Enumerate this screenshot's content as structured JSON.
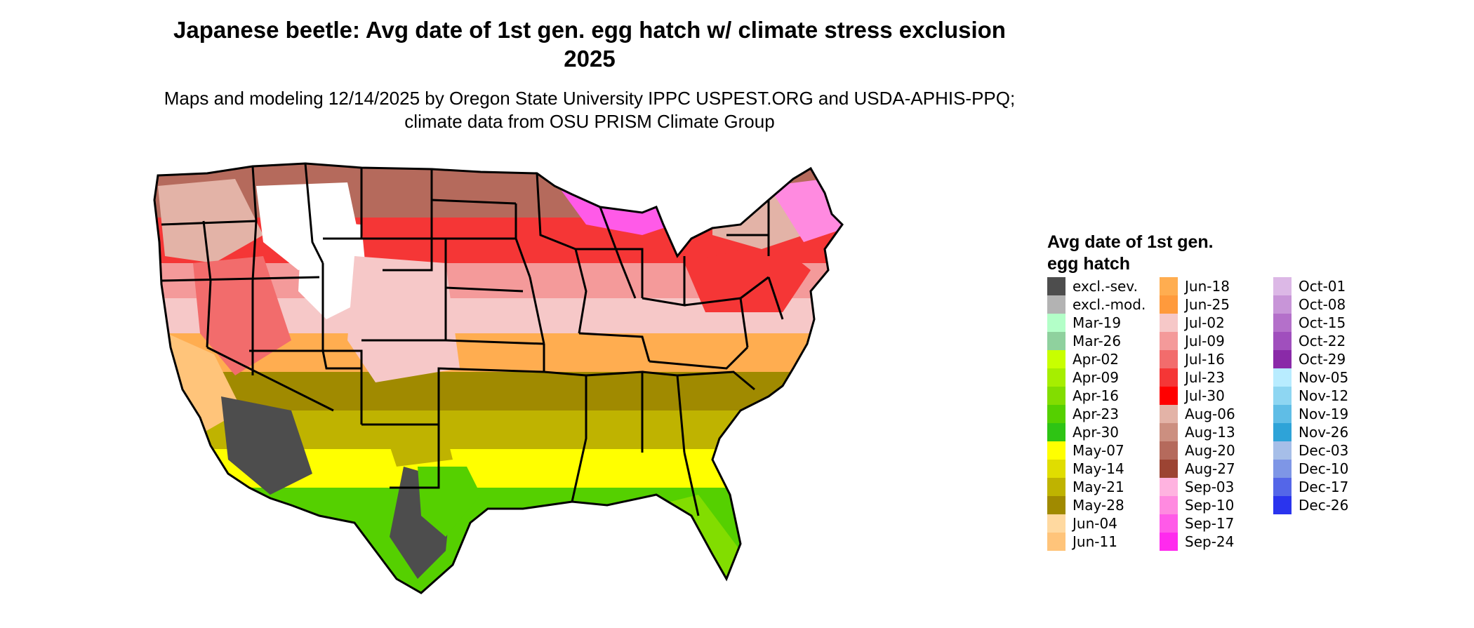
{
  "title": "Japanese beetle: Avg date of 1st gen. egg hatch w/ climate stress exclusion 2025",
  "subtitle": "Maps and modeling 12/14/2025 by Oregon State University IPPC USPEST.ORG and USDA-APHIS-PPQ; climate data from OSU PRISM Climate Group",
  "legend": {
    "title": "Avg date of 1st gen. egg hatch",
    "columns": [
      [
        {
          "label": "excl.-sev.",
          "color": "#4d4d4d"
        },
        {
          "label": "excl.-mod.",
          "color": "#b3b3b3"
        },
        {
          "label": "Mar-19",
          "color": "#b3ffc8"
        },
        {
          "label": "Mar-26",
          "color": "#8fd19e"
        },
        {
          "label": "Apr-02",
          "color": "#c8ff00"
        },
        {
          "label": "Apr-09",
          "color": "#a6ee00"
        },
        {
          "label": "Apr-16",
          "color": "#82dd00"
        },
        {
          "label": "Apr-23",
          "color": "#55d000"
        },
        {
          "label": "Apr-30",
          "color": "#2ec414"
        },
        {
          "label": "May-07",
          "color": "#ffff00"
        },
        {
          "label": "May-14",
          "color": "#e0dd00"
        },
        {
          "label": "May-21",
          "color": "#bfb300"
        },
        {
          "label": "May-28",
          "color": "#a08a00"
        },
        {
          "label": "Jun-04",
          "color": "#ffd9a0"
        },
        {
          "label": "Jun-11",
          "color": "#ffc47a"
        }
      ],
      [
        {
          "label": "Jun-18",
          "color": "#ffad50"
        },
        {
          "label": "Jun-25",
          "color": "#ff9a3c"
        },
        {
          "label": "Jul-02",
          "color": "#f6c8c8"
        },
        {
          "label": "Jul-09",
          "color": "#f49a9a"
        },
        {
          "label": "Jul-16",
          "color": "#f26c6c"
        },
        {
          "label": "Jul-23",
          "color": "#f53636"
        },
        {
          "label": "Jul-30",
          "color": "#ff0000"
        },
        {
          "label": "Aug-06",
          "color": "#e3b3a7"
        },
        {
          "label": "Aug-13",
          "color": "#cc8f80"
        },
        {
          "label": "Aug-20",
          "color": "#b56a5c"
        },
        {
          "label": "Aug-27",
          "color": "#9c4433"
        },
        {
          "label": "Sep-03",
          "color": "#ffb3e0"
        },
        {
          "label": "Sep-10",
          "color": "#ff8ae0"
        },
        {
          "label": "Sep-17",
          "color": "#ff5ae8"
        },
        {
          "label": "Sep-24",
          "color": "#ff2aee"
        }
      ],
      [
        {
          "label": "Oct-01",
          "color": "#dcb8e6"
        },
        {
          "label": "Oct-08",
          "color": "#c895d8"
        },
        {
          "label": "Oct-15",
          "color": "#b470ca"
        },
        {
          "label": "Oct-22",
          "color": "#a04fbd"
        },
        {
          "label": "Oct-29",
          "color": "#8a2aa8"
        },
        {
          "label": "Nov-05",
          "color": "#b8ecff"
        },
        {
          "label": "Nov-12",
          "color": "#8ed6f2"
        },
        {
          "label": "Nov-19",
          "color": "#5fbde6"
        },
        {
          "label": "Nov-26",
          "color": "#2ea3d8"
        },
        {
          "label": "Dec-03",
          "color": "#a6bee8"
        },
        {
          "label": "Dec-10",
          "color": "#7e96e6"
        },
        {
          "label": "Dec-17",
          "color": "#5466e8"
        },
        {
          "label": "Dec-26",
          "color": "#2a34ee"
        }
      ]
    ]
  }
}
